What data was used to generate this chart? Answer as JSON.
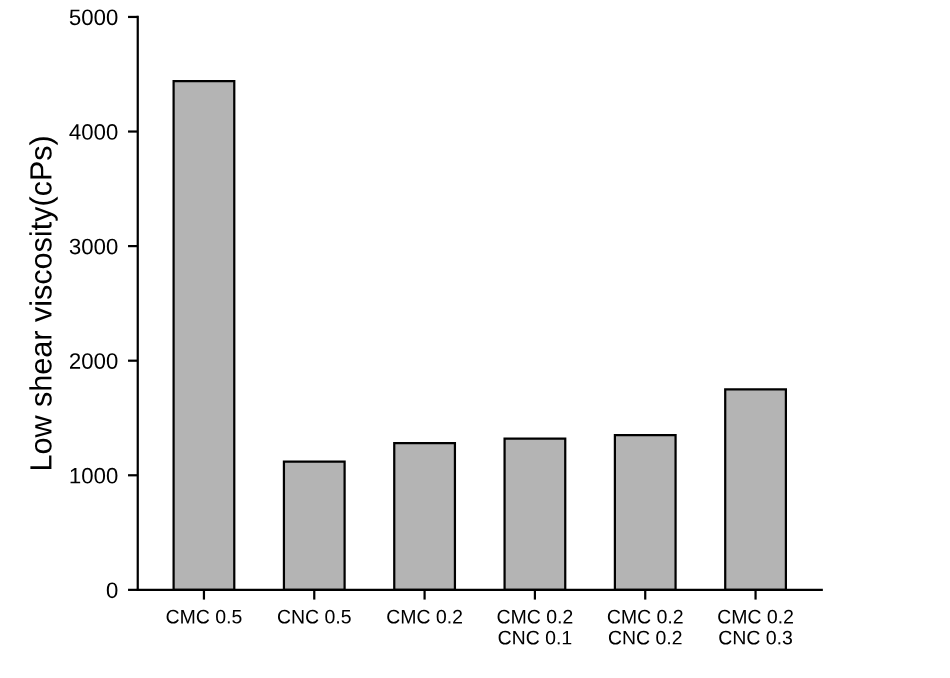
{
  "chart_data": {
    "type": "bar",
    "ylabel": "Low shear viscosity(cPs)",
    "categories": [
      "CMC 0.5",
      "CNC 0.5",
      "CMC 0.2",
      "CMC 0.2\nCNC 0.1",
      "CMC 0.2\nCNC 0.2",
      "CMC 0.2\nCNC 0.3"
    ],
    "values": [
      4440,
      1120,
      1280,
      1320,
      1350,
      1750
    ],
    "color": "#b4b4b4",
    "ylim": [
      0,
      5000
    ],
    "yticks": [
      0,
      1000,
      2000,
      3000,
      4000,
      5000
    ],
    "grid": false
  }
}
